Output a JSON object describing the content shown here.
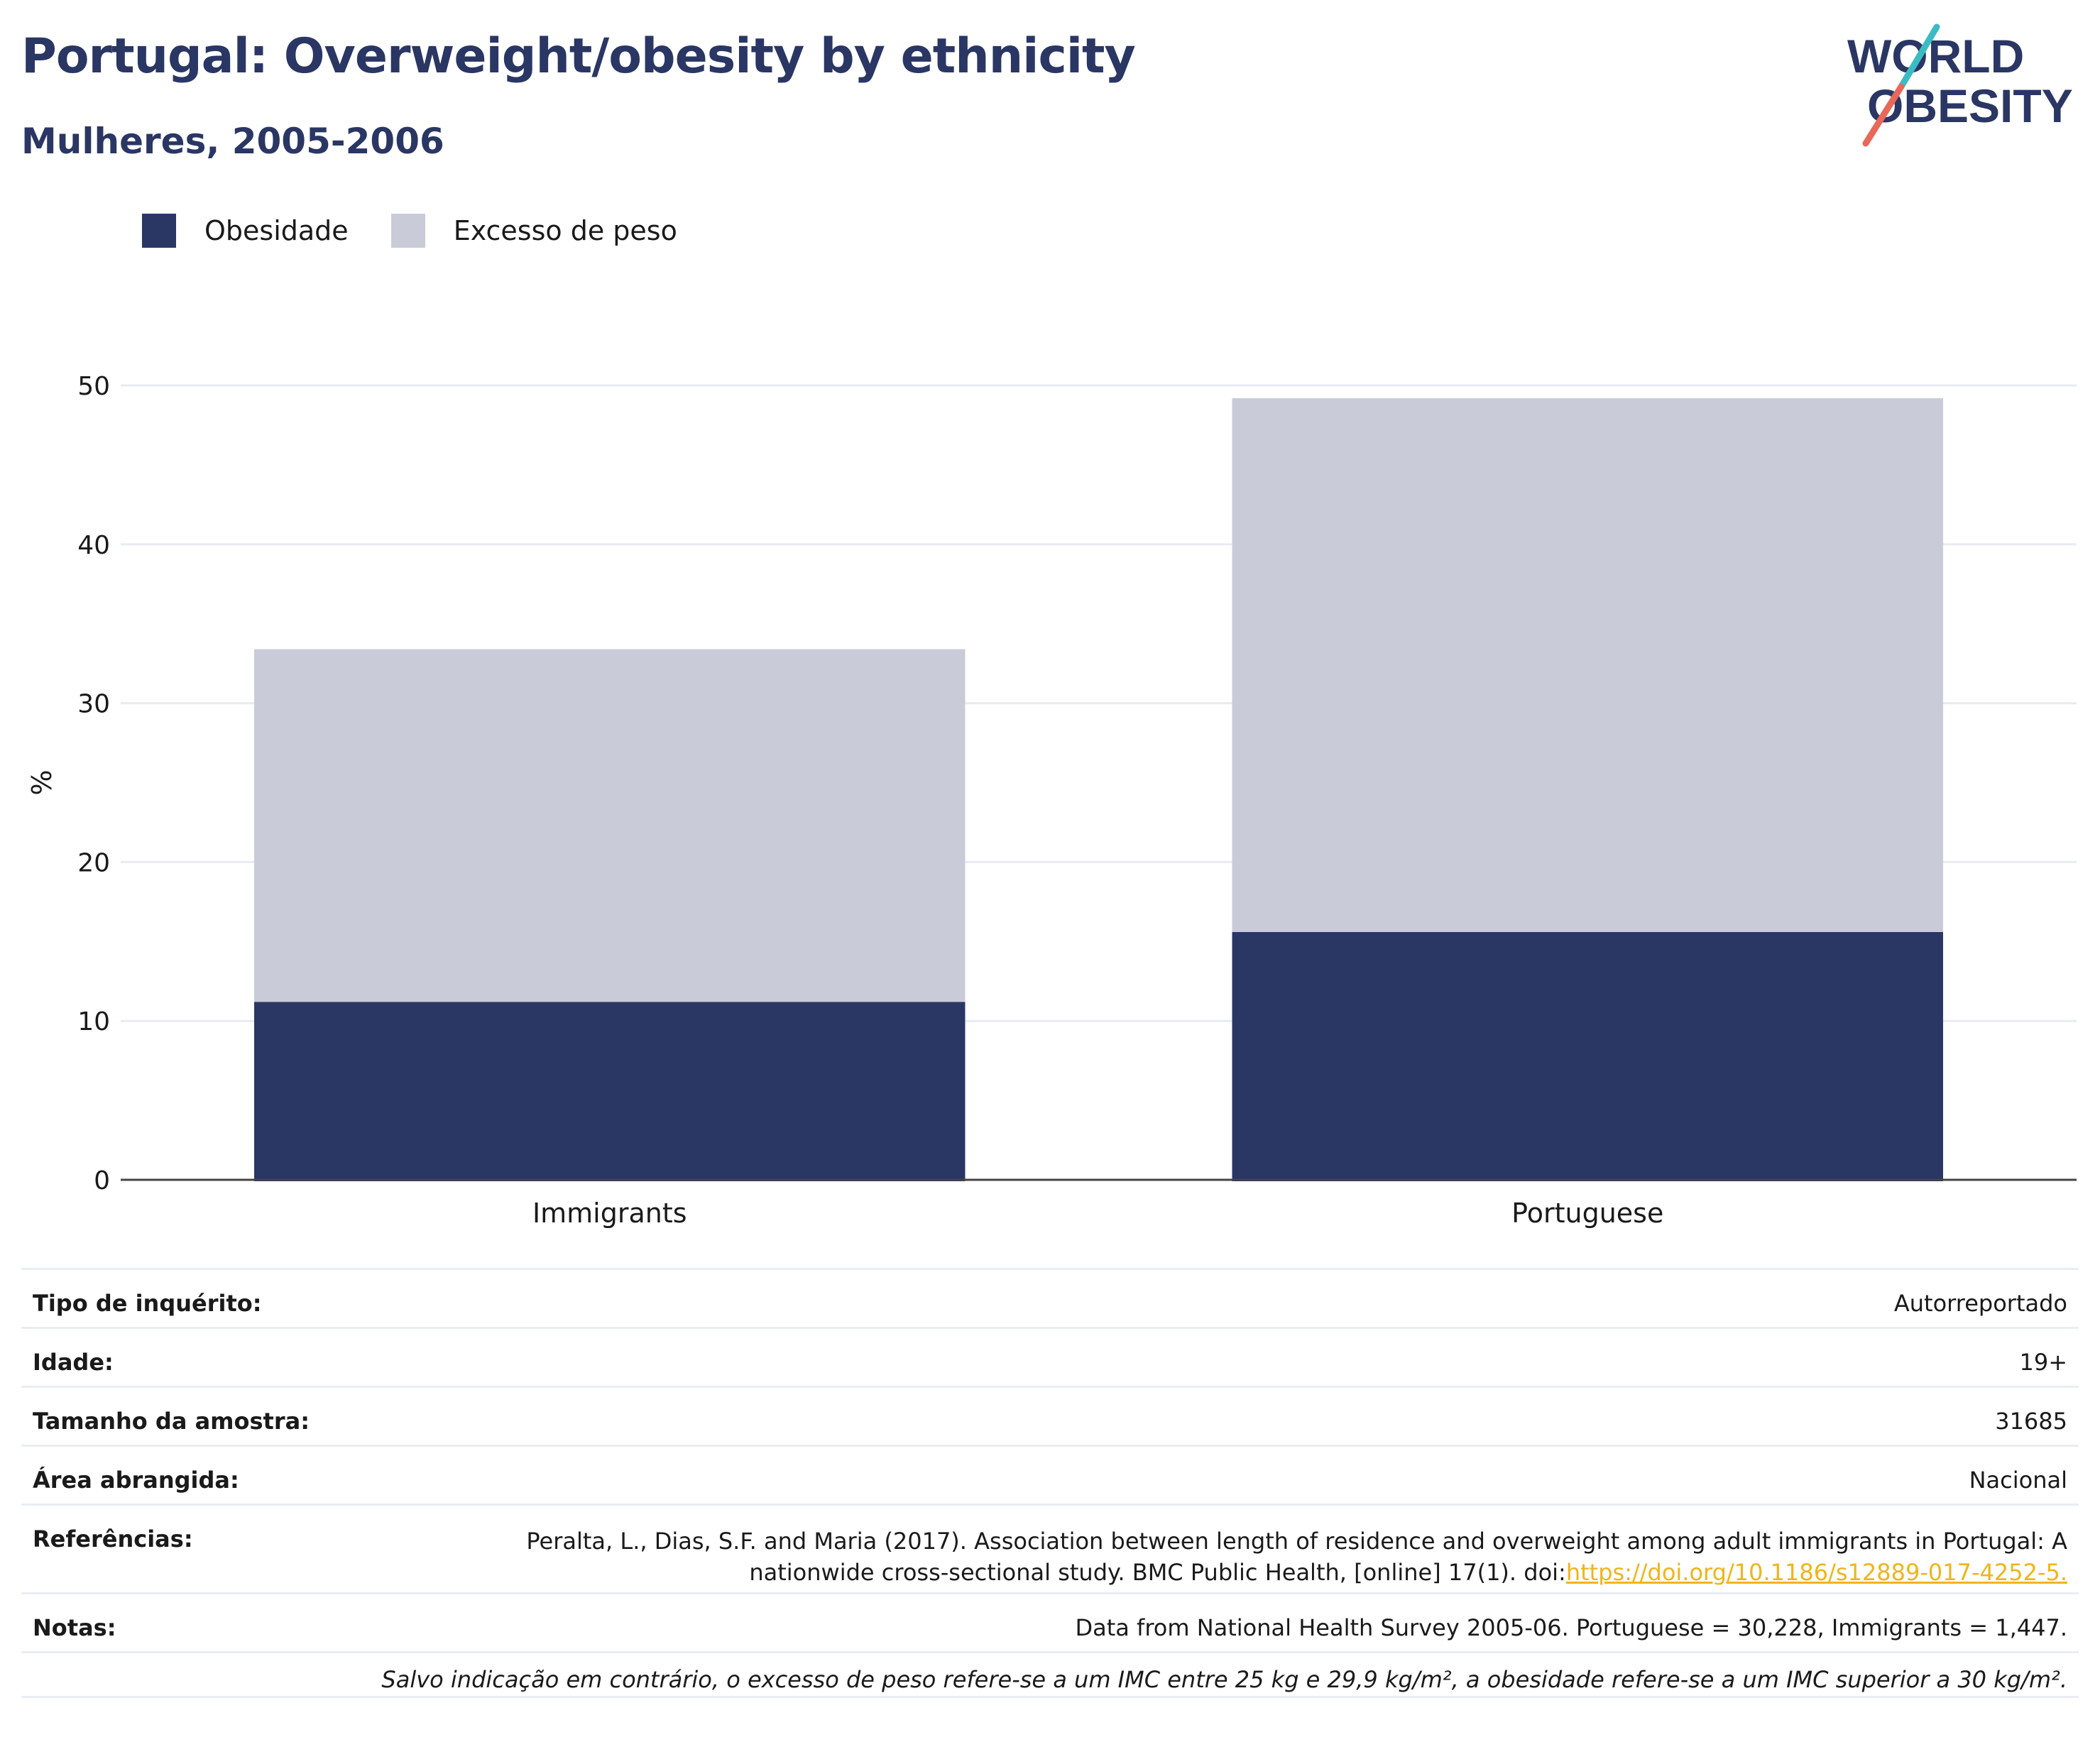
{
  "header": {
    "title": "Portugal: Overweight/obesity by ethnicity",
    "subtitle": "Mulheres, 2005-2006"
  },
  "logo": {
    "line1": "WORLD",
    "line2": "OBESITY"
  },
  "colors": {
    "obesity": "#2a3663",
    "overweight": "#c9ccd8",
    "accent_teal": "#3bbcc4",
    "accent_red": "#e8685a",
    "link": "#f0b41c"
  },
  "chart_data": {
    "type": "bar",
    "stacked": true,
    "categories": [
      "Immigrants",
      "Portuguese"
    ],
    "series": [
      {
        "name": "Obesidade",
        "values": [
          11.2,
          15.6
        ]
      },
      {
        "name": "Excesso de peso",
        "values": [
          22.2,
          33.6
        ]
      }
    ],
    "ylabel": "%",
    "ylim": [
      0,
      50
    ],
    "yticks": [
      0,
      10,
      20,
      30,
      40,
      50
    ],
    "legend_position": "top-left",
    "grid": true
  },
  "info": {
    "survey_type": {
      "label": "Tipo de inquérito:",
      "value": "Autorreportado"
    },
    "age": {
      "label": "Idade:",
      "value": "19+"
    },
    "sample_size": {
      "label": "Tamanho da amostra:",
      "value": "31685"
    },
    "area": {
      "label": "Área abrangida:",
      "value": "Nacional"
    },
    "references": {
      "label": "Referências:",
      "line1": "Peralta, L., Dias, S.F. and Maria (2017). Association between length of residence and overweight among adult immigrants in Portugal: A",
      "line2": "nationwide cross-sectional study. BMC Public Health, [online] 17(1). doi:",
      "doi": "https://doi.org/10.1186/s12889-017-4252-5."
    },
    "notes": {
      "label": "Notas:",
      "value": "Data from National Health Survey 2005-06. Portuguese = 30,228, Immigrants = 1,447."
    },
    "footnote": "Salvo indicação em contrário, o excesso de peso refere-se a um IMC entre 25 kg e 29,9 kg/m², a obesidade refere-se a um IMC superior a 30 kg/m²."
  }
}
